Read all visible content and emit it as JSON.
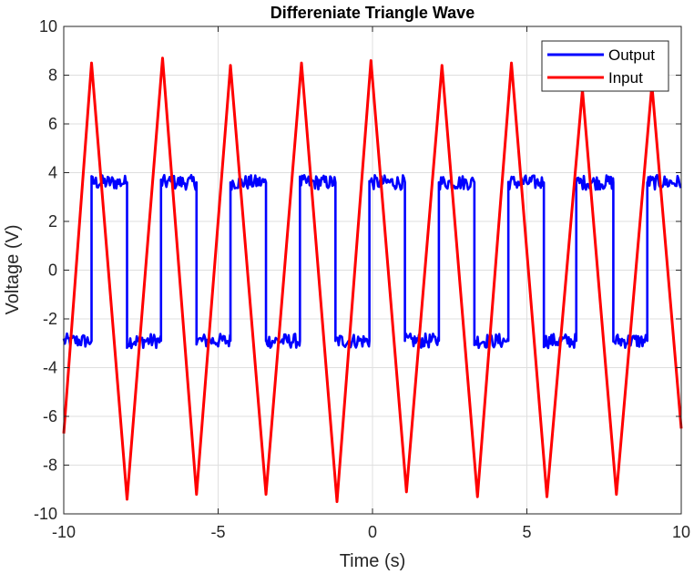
{
  "chart_data": {
    "type": "line",
    "title": "Differeniate Triangle Wave",
    "xlabel": "Time (s)",
    "ylabel": "Voltage (V)",
    "xlim": [
      -10,
      10
    ],
    "ylim": [
      -10,
      10
    ],
    "xticks": [
      -10,
      -5,
      0,
      5,
      10
    ],
    "yticks": [
      -10,
      -8,
      -6,
      -4,
      -2,
      0,
      2,
      4,
      6,
      8,
      10
    ],
    "grid": true,
    "legend_position": "top-right",
    "series": [
      {
        "name": "Output",
        "color": "#0000ff",
        "style": "square-wave",
        "high": 3.6,
        "low": -2.9,
        "noise": 0.3,
        "rising_edges": [
          -9.1,
          -6.85,
          -4.6,
          -2.35,
          -0.1,
          2.15,
          4.4,
          6.6,
          8.9
        ],
        "falling_edges": [
          -7.95,
          -5.7,
          -3.45,
          -1.2,
          1.05,
          3.3,
          5.55,
          7.8
        ]
      },
      {
        "name": "Input",
        "color": "#ff0000",
        "style": "triangle",
        "x": [
          -10,
          -9.1,
          -7.95,
          -6.8,
          -5.7,
          -4.6,
          -3.45,
          -2.3,
          -1.15,
          -0.05,
          1.1,
          2.25,
          3.4,
          4.5,
          5.65,
          6.8,
          7.9,
          9.05,
          10
        ],
        "y": [
          -6.7,
          8.5,
          -9.4,
          8.7,
          -9.2,
          8.4,
          -9.2,
          8.5,
          -9.5,
          8.6,
          -9.1,
          8.4,
          -9.3,
          8.5,
          -9.3,
          7.4,
          -9.2,
          7.6,
          -6.5
        ]
      }
    ]
  }
}
